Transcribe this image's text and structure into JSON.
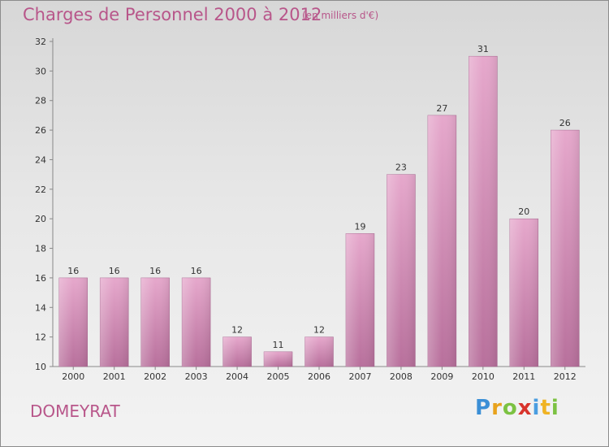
{
  "header": {
    "title": "Charges de Personnel 2000 à 2012",
    "subtitle": "(en milliers d'€)"
  },
  "footer": {
    "commune": "DOMEYRAT",
    "logo_letters": [
      "P",
      "r",
      "o",
      "x",
      "i",
      "t",
      "i"
    ],
    "logo_colors": [
      "#3b8fd6",
      "#e8a21c",
      "#7cc242",
      "#d8342c",
      "#4a9de0",
      "#f0b323",
      "#7cc242"
    ]
  },
  "colors": {
    "bar": "#d48bb5",
    "title": "#b8568a"
  },
  "chart_data": {
    "type": "bar",
    "title": "Charges de Personnel 2000 à 2012",
    "categories": [
      "2000",
      "2001",
      "2002",
      "2003",
      "2004",
      "2005",
      "2006",
      "2007",
      "2008",
      "2009",
      "2010",
      "2011",
      "2012"
    ],
    "values": [
      16,
      16,
      16,
      16,
      12,
      11,
      12,
      19,
      23,
      27,
      31,
      20,
      26
    ],
    "ylim": [
      10,
      32
    ],
    "yticks": [
      10,
      12,
      14,
      16,
      18,
      20,
      22,
      24,
      26,
      28,
      30,
      32
    ],
    "xlabel": "",
    "ylabel": "",
    "grid": false
  }
}
